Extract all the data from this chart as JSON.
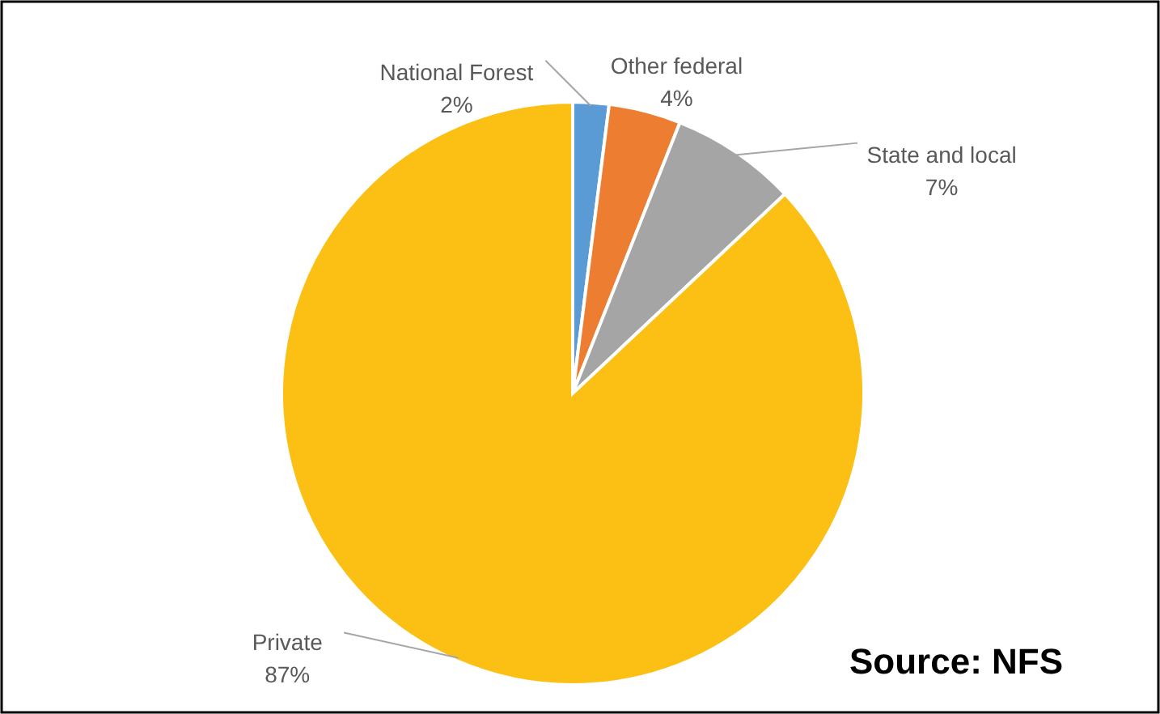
{
  "chart_data": {
    "type": "pie",
    "categories": [
      "National Forest",
      "Other federal",
      "State and local",
      "Private"
    ],
    "values": [
      2,
      4,
      7,
      87
    ],
    "colors": [
      "#5b9bd5",
      "#ed7d31",
      "#a5a5a5",
      "#fbc013"
    ],
    "value_labels": [
      "2%",
      "4%",
      "7%",
      "87%"
    ],
    "annotations": [
      "Source: NFS"
    ]
  }
}
